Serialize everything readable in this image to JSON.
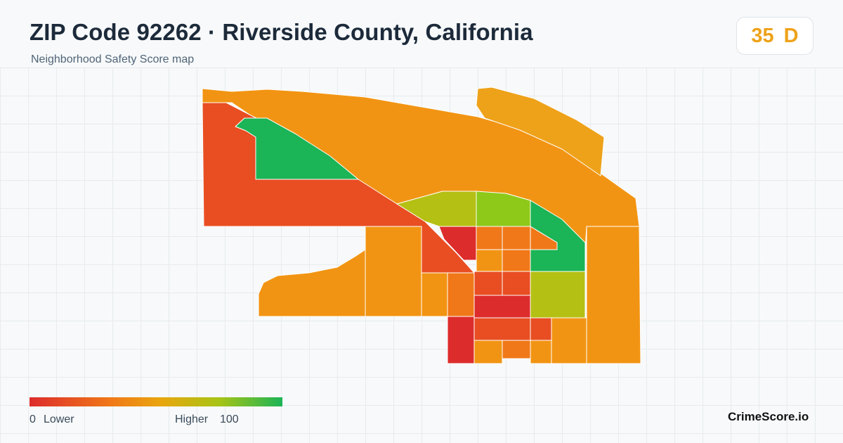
{
  "header": {
    "title": "ZIP Code 92262 · Riverside County, California",
    "subtitle": "Neighborhood Safety Score map"
  },
  "score": {
    "value": "35",
    "grade": "D",
    "color": "#eea21a"
  },
  "legend": {
    "min": "0",
    "min_label": "Lower",
    "max_label": "Higher",
    "max": "100",
    "colors": [
      "#dd2c2c",
      "#f07818",
      "#e9a60e",
      "#a8c416",
      "#1bb456"
    ]
  },
  "brand": "CrimeScore.io",
  "map": {
    "palette": {
      "red": "#dd2c2c",
      "red_orange": "#e84e22",
      "orange": "#f07818",
      "amber": "#f29413",
      "gold": "#eea21a",
      "yellow_green": "#b5c014",
      "lime": "#8ec91a",
      "green": "#1bb456"
    }
  }
}
